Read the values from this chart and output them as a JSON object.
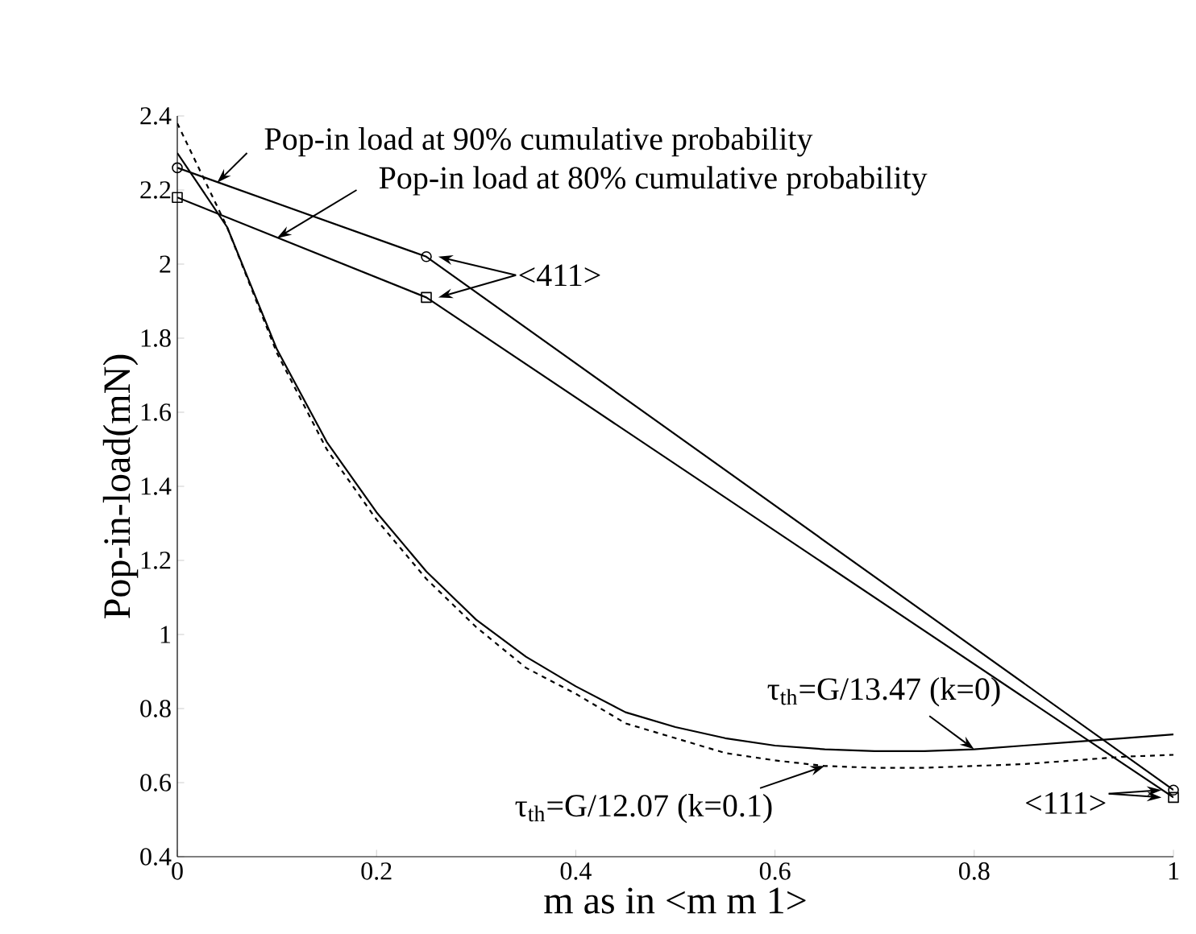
{
  "chart_data": {
    "type": "line",
    "xlabel": "m as in <m m 1>",
    "ylabel": "Pop-in-load(mN)",
    "xlim": [
      0,
      1
    ],
    "ylim": [
      0.4,
      2.4
    ],
    "xticks": [
      0,
      0.2,
      0.4,
      0.6,
      0.8,
      1
    ],
    "yticks": [
      0.4,
      0.6,
      0.8,
      1,
      1.2,
      1.4,
      1.6,
      1.8,
      2,
      2.2,
      2.4
    ],
    "grid": false,
    "series": [
      {
        "color": "#000000",
        "marker": "circle",
        "line_style": "solid",
        "x": [
          0,
          0.25,
          1
        ],
        "values": [
          2.26,
          2.02,
          0.58
        ]
      },
      {
        "color": "#000000",
        "marker": "square",
        "line_style": "solid",
        "x": [
          0,
          0.25,
          1
        ],
        "values": [
          2.18,
          1.91,
          0.56
        ]
      },
      {
        "color": "#000000",
        "marker": "none",
        "line_style": "solid",
        "x": [
          0,
          0.05,
          0.1,
          0.15,
          0.2,
          0.25,
          0.3,
          0.35,
          0.4,
          0.45,
          0.5,
          0.55,
          0.6,
          0.65,
          0.7,
          0.75,
          0.8,
          0.85,
          0.9,
          0.95,
          1
        ],
        "values": [
          2.3,
          2.1,
          1.77,
          1.52,
          1.33,
          1.17,
          1.04,
          0.94,
          0.86,
          0.79,
          0.75,
          0.72,
          0.7,
          0.69,
          0.685,
          0.685,
          0.69,
          0.7,
          0.71,
          0.72,
          0.73
        ]
      },
      {
        "color": "#000000",
        "marker": "none",
        "line_style": "dashed",
        "x": [
          0,
          0.05,
          0.1,
          0.15,
          0.2,
          0.25,
          0.3,
          0.35,
          0.4,
          0.45,
          0.5,
          0.55,
          0.6,
          0.65,
          0.7,
          0.75,
          0.8,
          0.85,
          0.9,
          0.95,
          1
        ],
        "values": [
          2.38,
          2.1,
          1.76,
          1.5,
          1.31,
          1.15,
          1.02,
          0.91,
          0.84,
          0.76,
          0.72,
          0.68,
          0.66,
          0.645,
          0.64,
          0.64,
          0.645,
          0.65,
          0.66,
          0.67,
          0.675
        ]
      }
    ],
    "annotations": [
      {
        "text": "Pop-in load at 90% cumulative probability",
        "x": 0.04,
        "y": 2.22
      },
      {
        "text": "Pop-in load at 80% cumulative probability",
        "x": 0.1,
        "y": 2.07
      },
      {
        "text": "<411>",
        "x": 0.25,
        "y": 2.02
      },
      {
        "text": "τ$_{th}$=G/13.47 (k=0)",
        "x": 0.8,
        "y": 0.69
      },
      {
        "text": "τ$_{th}$=G/12.07 (k=0.1)",
        "x": 0.65,
        "y": 0.645
      },
      {
        "text": "<111>",
        "x": 1,
        "y": 0.57
      }
    ]
  }
}
